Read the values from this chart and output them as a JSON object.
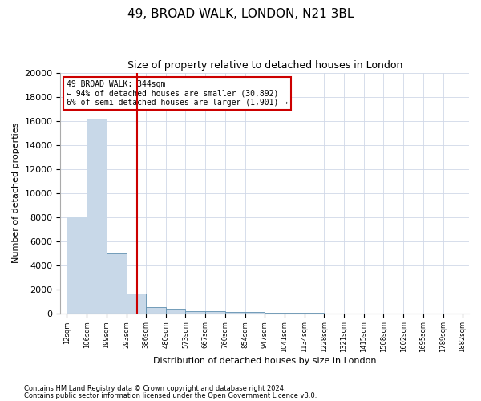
{
  "title": "49, BROAD WALK, LONDON, N21 3BL",
  "subtitle": "Size of property relative to detached houses in London",
  "xlabel": "Distribution of detached houses by size in London",
  "ylabel": "Number of detached properties",
  "bar_edges": [
    12,
    106,
    199,
    293,
    386,
    480,
    573,
    667,
    760,
    854,
    947,
    1041,
    1134,
    1228,
    1321,
    1415,
    1508,
    1602,
    1695,
    1789,
    1882
  ],
  "bar_heights": [
    8050,
    16200,
    5000,
    1620,
    500,
    350,
    200,
    150,
    100,
    80,
    40,
    20,
    10,
    5,
    3,
    2,
    2,
    1,
    1,
    1
  ],
  "bar_color": "#c8d8e8",
  "bar_edge_color": "#6090b0",
  "vline_x": 344,
  "vline_color": "#cc0000",
  "annotation_line1": "49 BROAD WALK: 344sqm",
  "annotation_line2": "← 94% of detached houses are smaller (30,892)",
  "annotation_line3": "6% of semi-detached houses are larger (1,901) →",
  "annotation_box_color": "#cc0000",
  "ylim": [
    0,
    20000
  ],
  "yticks": [
    0,
    2000,
    4000,
    6000,
    8000,
    10000,
    12000,
    14000,
    16000,
    18000,
    20000
  ],
  "sqm_labels": [
    "12sqm",
    "106sqm",
    "199sqm",
    "293sqm",
    "386sqm",
    "480sqm",
    "573sqm",
    "667sqm",
    "760sqm",
    "854sqm",
    "947sqm",
    "1041sqm",
    "1134sqm",
    "1228sqm",
    "1321sqm",
    "1415sqm",
    "1508sqm",
    "1602sqm",
    "1695sqm",
    "1789sqm",
    "1882sqm"
  ],
  "footnote1": "Contains HM Land Registry data © Crown copyright and database right 2024.",
  "footnote2": "Contains public sector information licensed under the Open Government Licence v3.0.",
  "background_color": "#ffffff",
  "grid_color": "#d0d8e8",
  "title_fontsize": 11,
  "subtitle_fontsize": 9,
  "ylabel_fontsize": 8,
  "xlabel_fontsize": 8,
  "ytick_fontsize": 8,
  "xtick_fontsize": 6,
  "annotation_fontsize": 7,
  "footnote_fontsize": 6
}
